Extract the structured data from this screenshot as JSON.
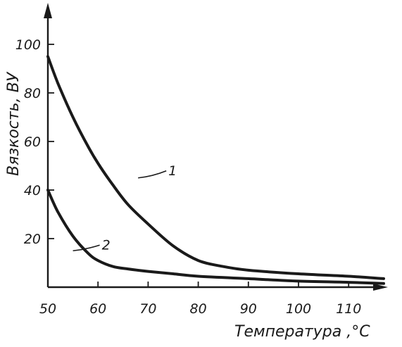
{
  "chart_data": {
    "type": "line",
    "title": "",
    "xlabel": "Температура ,°С",
    "ylabel": "Вязкость, ВУ",
    "xlim": [
      50,
      120
    ],
    "ylim": [
      0,
      100
    ],
    "x_ticks": [
      "50",
      "60",
      "70",
      "80",
      "90",
      "100",
      "110"
    ],
    "y_ticks": [
      "20",
      "40",
      "60",
      "80",
      "100"
    ],
    "grid": false,
    "series": [
      {
        "name": "1",
        "x": [
          50,
          52,
          55,
          58,
          60,
          63,
          66,
          70,
          75,
          80,
          85,
          90,
          100,
          110,
          117
        ],
        "y": [
          95,
          84,
          70,
          58,
          51,
          42,
          34,
          26,
          17,
          11,
          8.5,
          7,
          5.5,
          4.5,
          3.5
        ]
      },
      {
        "name": "2",
        "x": [
          50,
          52,
          55,
          58,
          60,
          63,
          66,
          70,
          75,
          80,
          90,
          100,
          110,
          117
        ],
        "y": [
          40,
          31,
          21,
          14,
          11,
          8.5,
          7.5,
          6.5,
          5.5,
          4.5,
          3.5,
          2.5,
          2,
          1.5
        ]
      }
    ]
  }
}
